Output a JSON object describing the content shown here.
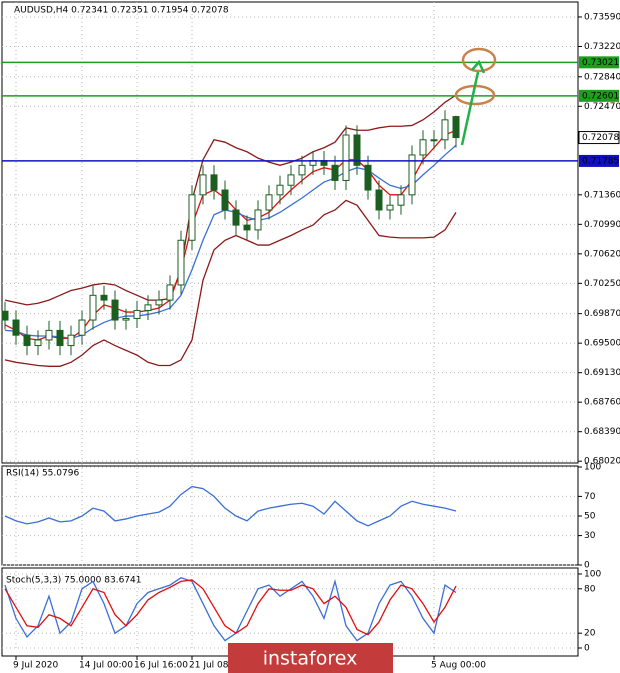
{
  "chart_data": [
    {
      "type": "candlestick",
      "title": "AUDUSD,H4  0.72341 0.72351 0.71954 0.72078",
      "categories": [
        null,
        "9 Jul 2020",
        null,
        null,
        null,
        null,
        null,
        "14 Jul 00:00",
        null,
        null,
        null,
        null,
        "16 Jul 16:00",
        null,
        null,
        null,
        null,
        "21 Jul 08:00",
        null,
        null,
        null,
        null,
        null,
        null,
        null,
        null,
        null,
        null,
        null,
        null,
        null,
        null,
        null,
        null,
        null,
        null,
        null,
        null,
        null,
        "5 Aug 00:00",
        null,
        null
      ],
      "open": [
        0.699,
        0.6979,
        0.696,
        0.6947,
        0.6954,
        0.6966,
        0.6947,
        0.696,
        0.6979,
        0.701,
        0.7004,
        0.6979,
        0.6981,
        0.6991,
        0.6998,
        0.7004,
        0.7023,
        0.7079,
        0.7136,
        0.7161,
        0.7142,
        0.7117,
        0.7098,
        0.7092,
        0.7117,
        0.7136,
        0.7148,
        0.7161,
        0.7173,
        0.7179,
        0.7173,
        0.7154,
        0.7211,
        0.7173,
        0.7142,
        0.7117,
        0.7123,
        0.7136,
        0.7186,
        0.7205,
        0.7205,
        0.72341
      ],
      "high": [
        0.7002,
        0.6991,
        0.6972,
        0.6966,
        0.6978,
        0.6978,
        0.6972,
        0.6991,
        0.7022,
        0.7022,
        0.7016,
        0.6993,
        0.7003,
        0.701,
        0.7016,
        0.7035,
        0.7091,
        0.7148,
        0.7173,
        0.7173,
        0.7154,
        0.7129,
        0.711,
        0.7129,
        0.7148,
        0.716,
        0.7173,
        0.7185,
        0.7191,
        0.7191,
        0.7185,
        0.7223,
        0.7223,
        0.7185,
        0.7154,
        0.7135,
        0.7148,
        0.7198,
        0.7217,
        0.7217,
        0.7242,
        0.72351
      ],
      "low": [
        0.6967,
        0.6948,
        0.6935,
        0.6935,
        0.6942,
        0.6935,
        0.6935,
        0.6948,
        0.6967,
        0.6992,
        0.6967,
        0.6967,
        0.6969,
        0.6979,
        0.6986,
        0.6992,
        0.7011,
        0.7067,
        0.7124,
        0.713,
        0.7105,
        0.7086,
        0.708,
        0.708,
        0.7105,
        0.7124,
        0.7136,
        0.7149,
        0.7161,
        0.7161,
        0.7142,
        0.7142,
        0.7161,
        0.713,
        0.7105,
        0.7105,
        0.7111,
        0.7124,
        0.7174,
        0.7193,
        0.7193,
        0.71954
      ],
      "close": [
        0.6979,
        0.696,
        0.6947,
        0.6954,
        0.6966,
        0.6947,
        0.696,
        0.6979,
        0.701,
        0.7004,
        0.6979,
        0.6981,
        0.6991,
        0.6998,
        0.7004,
        0.7023,
        0.7079,
        0.7136,
        0.7161,
        0.7142,
        0.7117,
        0.7098,
        0.7092,
        0.7117,
        0.7136,
        0.7148,
        0.7161,
        0.7173,
        0.7179,
        0.7173,
        0.7154,
        0.7211,
        0.7173,
        0.7142,
        0.7117,
        0.7123,
        0.7136,
        0.7186,
        0.7205,
        0.7205,
        0.723,
        0.72078
      ],
      "candle_color": "#1b5e20",
      "series": [
        {
          "color": "#8b1a1a",
          "values": [
            0.7004,
            0.7001,
            0.6998,
            0.7,
            0.7004,
            0.701,
            0.7016,
            0.7019,
            0.7023,
            0.7025,
            0.7023,
            0.7016,
            0.701,
            0.7004,
            0.7004,
            0.7006,
            0.7042,
            0.7129,
            0.718,
            0.7205,
            0.7202,
            0.7195,
            0.719,
            0.7182,
            0.7177,
            0.7173,
            0.7177,
            0.7182,
            0.719,
            0.7195,
            0.7202,
            0.722,
            0.7217,
            0.7217,
            0.722,
            0.7222,
            0.7222,
            0.7223,
            0.723,
            0.724,
            0.7252,
            0.7261
          ]
        },
        {
          "color": "#8b1a1a",
          "values": [
            0.6929,
            0.6926,
            0.6924,
            0.6922,
            0.6921,
            0.6921,
            0.6926,
            0.6935,
            0.6947,
            0.6954,
            0.6947,
            0.6941,
            0.6935,
            0.6926,
            0.6922,
            0.6922,
            0.6929,
            0.6954,
            0.7029,
            0.7067,
            0.7079,
            0.7085,
            0.7079,
            0.7073,
            0.7073,
            0.7079,
            0.7085,
            0.7092,
            0.7098,
            0.7111,
            0.7117,
            0.7129,
            0.7123,
            0.7104,
            0.7085,
            0.7083,
            0.7082,
            0.7082,
            0.7082,
            0.7083,
            0.7092,
            0.7114
          ]
        },
        {
          "color": "#e01010",
          "values": [
            0.6973,
            0.6966,
            0.6956,
            0.6954,
            0.6959,
            0.6956,
            0.6956,
            0.6966,
            0.6985,
            0.6998,
            0.6994,
            0.6989,
            0.6989,
            0.6991,
            0.6994,
            0.7004,
            0.7042,
            0.7098,
            0.7136,
            0.7142,
            0.7132,
            0.7117,
            0.7104,
            0.7107,
            0.7114,
            0.7129,
            0.7142,
            0.7154,
            0.7165,
            0.717,
            0.7167,
            0.718,
            0.718,
            0.7167,
            0.7148,
            0.7136,
            0.7136,
            0.7154,
            0.718,
            0.7195,
            0.7211,
            0.7217
          ]
        },
        {
          "color": "#3a6fd8",
          "values": [
            0.6966,
            0.6965,
            0.696,
            0.6959,
            0.6959,
            0.6958,
            0.6956,
            0.696,
            0.6969,
            0.6976,
            0.6981,
            0.6984,
            0.6984,
            0.6986,
            0.6989,
            0.6994,
            0.701,
            0.7042,
            0.7079,
            0.7111,
            0.7117,
            0.7114,
            0.7108,
            0.7104,
            0.7107,
            0.7114,
            0.7123,
            0.7132,
            0.7142,
            0.7152,
            0.7157,
            0.7165,
            0.717,
            0.7167,
            0.7157,
            0.7148,
            0.7144,
            0.7148,
            0.7161,
            0.7173,
            0.7186,
            0.7198
          ]
        }
      ],
      "levels": [
        {
          "value": 0.73021,
          "label": "0.73021",
          "color": "#1aa01a"
        },
        {
          "value": 0.72601,
          "label": "0.72601",
          "color": "#1aa01a"
        },
        {
          "value": 0.71785,
          "label": "0.71785",
          "color": "#1010c0"
        }
      ],
      "current": {
        "value": 0.72078,
        "label": "0.72078"
      },
      "ylim": [
        0.6801,
        0.7374
      ],
      "yticks": [
        {
          "value": 0.7359,
          "label": "0.73590"
        },
        {
          "value": 0.7322,
          "label": "0.73220"
        },
        {
          "value": 0.7284,
          "label": "0.72840"
        },
        {
          "value": 0.7247,
          "label": "0.72470"
        },
        {
          "value": 0.7136,
          "label": "0.71360"
        },
        {
          "value": 0.7099,
          "label": "0.70990"
        },
        {
          "value": 0.7062,
          "label": "0.70620"
        },
        {
          "value": 0.7025,
          "label": "0.70250"
        },
        {
          "value": 0.6987,
          "label": "0.69870"
        },
        {
          "value": 0.695,
          "label": "0.69500"
        },
        {
          "value": 0.6913,
          "label": "0.69130"
        },
        {
          "value": 0.6876,
          "label": "0.68760"
        },
        {
          "value": 0.6839,
          "label": "0.68390"
        },
        {
          "value": 0.6802,
          "label": "0.68020"
        }
      ],
      "grid": true
    },
    {
      "type": "line",
      "title": "RSI(14) 55.0796",
      "series": [
        {
          "color": "#3a6fd8",
          "values": [
            50,
            45,
            42,
            44,
            48,
            44,
            45,
            50,
            58,
            55,
            45,
            47,
            50,
            52,
            54,
            60,
            72,
            80,
            78,
            70,
            58,
            50,
            45,
            55,
            58,
            60,
            62,
            63,
            60,
            52,
            65,
            55,
            45,
            40,
            45,
            50,
            60,
            65,
            62,
            60,
            58,
            55.0796
          ]
        }
      ],
      "ylim": [
        0,
        100
      ],
      "yticks": [
        0,
        30,
        50,
        70,
        100
      ],
      "grid": true
    },
    {
      "type": "line",
      "title": "Stoch(5,3,3) 75.0000 83.6741",
      "series": [
        {
          "color": "#3a6fd8",
          "values": [
            85,
            40,
            15,
            30,
            70,
            20,
            35,
            80,
            90,
            60,
            20,
            30,
            60,
            75,
            80,
            85,
            95,
            90,
            60,
            30,
            10,
            20,
            50,
            80,
            85,
            70,
            80,
            90,
            70,
            40,
            90,
            30,
            10,
            20,
            60,
            85,
            90,
            70,
            40,
            20,
            85,
            75
          ]
        },
        {
          "color": "#e01010",
          "values": [
            80,
            55,
            30,
            28,
            45,
            40,
            30,
            55,
            80,
            75,
            45,
            30,
            45,
            65,
            75,
            82,
            90,
            92,
            80,
            55,
            30,
            20,
            30,
            60,
            80,
            78,
            78,
            85,
            80,
            60,
            70,
            55,
            25,
            18,
            35,
            65,
            85,
            80,
            60,
            35,
            55,
            83.6741
          ]
        }
      ],
      "ylim": [
        0,
        100
      ],
      "yticks": [
        0,
        20,
        80,
        100
      ],
      "grid": true
    }
  ],
  "watermark": "instaforex"
}
